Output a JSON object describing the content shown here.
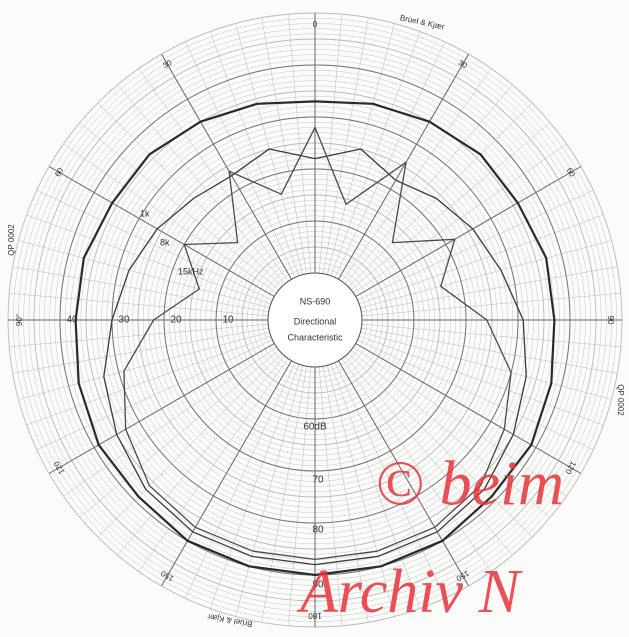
{
  "chart_data": {
    "type": "polar",
    "title": "NS-690",
    "subtitle_lines": [
      "Directional",
      "Characteristic"
    ],
    "theta": [
      0,
      15,
      30,
      45,
      60,
      75,
      90,
      105,
      120,
      135,
      150,
      165,
      180,
      195,
      210,
      225,
      240,
      255,
      270,
      285,
      300,
      315,
      330,
      345
    ],
    "series": [
      {
        "name": "1k",
        "color": "#2a2a2a",
        "values": [
          33,
          34,
          35,
          36,
          36,
          37,
          37,
          38,
          39,
          39,
          40,
          40,
          40,
          40,
          40,
          39,
          39,
          38,
          37,
          37,
          36,
          36,
          35,
          34
        ]
      },
      {
        "name": "8k",
        "color": "#3a3a3a",
        "values": [
          22,
          25,
          22,
          24,
          26,
          28,
          31,
          33,
          35,
          37,
          38,
          38,
          38,
          38,
          38,
          37,
          35,
          33,
          30,
          28,
          26,
          24,
          23,
          25
        ]
      },
      {
        "name": "15kHz",
        "color": "#4a4a4a",
        "values": [
          28,
          14,
          26,
          12,
          22,
          16,
          24,
          30,
          33,
          36,
          37,
          37,
          37,
          37,
          37,
          36,
          33,
          29,
          22,
          14,
          20,
          12,
          24,
          16
        ]
      }
    ],
    "rlim": [
      0,
      50
    ],
    "rticks": [
      0,
      10,
      20,
      30,
      40
    ],
    "thetaticks": [
      0,
      30,
      60,
      90,
      120,
      150,
      180,
      {
        "value": 210,
        "label": "150"
      },
      {
        "value": 240,
        "label": "120"
      },
      {
        "value": 270,
        "label": "90°"
      },
      {
        "value": 300,
        "label": "60"
      },
      {
        "value": 330,
        "label": "30"
      }
    ],
    "scale_labels": [
      "60dB",
      "70",
      "80",
      "90"
    ],
    "paper_labels": [
      "Brüel & Kjær",
      "QP 0002",
      "QP 0002",
      "Brüel & Kjær"
    ],
    "watermark": [
      "© beim",
      "Archiv N"
    ],
    "grid": true
  }
}
